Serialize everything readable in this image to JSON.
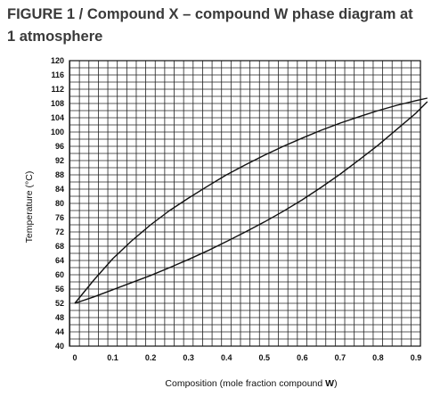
{
  "figure": {
    "title": "FIGURE 1 / Compound X – compound W phase diagram at 1 atmosphere"
  },
  "chart_data": {
    "type": "line",
    "xlabel_prefix": "Composition (mole fraction compound ",
    "xlabel_bold": "W",
    "xlabel_suffix": ")",
    "ylabel": "Temperature (°C)",
    "xlim": [
      0,
      0.9
    ],
    "ylim": [
      40,
      120
    ],
    "xticks": [
      "0",
      "0.1",
      "0.2",
      "0.3",
      "0.4",
      "0.5",
      "0.6",
      "0.7",
      "0.8",
      "0.9"
    ],
    "yticks": [
      "120",
      "116",
      "112",
      "108",
      "104",
      "100",
      "96",
      "92",
      "88",
      "84",
      "80",
      "76",
      "72",
      "68",
      "64",
      "60",
      "56",
      "52",
      "48",
      "44",
      "40"
    ],
    "grid": true,
    "series": [
      {
        "x": [
          0,
          0.05,
          0.1,
          0.15,
          0.2,
          0.25,
          0.3,
          0.35,
          0.4,
          0.45,
          0.5,
          0.55,
          0.6,
          0.65,
          0.7,
          0.75,
          0.8,
          0.85,
          0.9,
          0.93
        ],
        "y": [
          52,
          58.5,
          64.5,
          69.5,
          74,
          78,
          81.5,
          84.8,
          88,
          90.8,
          93.5,
          96,
          98.3,
          100.5,
          102.5,
          104.3,
          106,
          107.5,
          108.8,
          109.5
        ]
      },
      {
        "x": [
          0,
          0.05,
          0.1,
          0.15,
          0.2,
          0.25,
          0.3,
          0.35,
          0.4,
          0.45,
          0.5,
          0.55,
          0.6,
          0.65,
          0.7,
          0.75,
          0.8,
          0.85,
          0.9,
          0.93
        ],
        "y": [
          52,
          53.8,
          55.8,
          57.8,
          59.8,
          62,
          64.3,
          66.7,
          69.3,
          72,
          74.8,
          77.8,
          81,
          84.5,
          88.2,
          92.2,
          96.3,
          100.8,
          105.3,
          108.5
        ]
      }
    ]
  }
}
